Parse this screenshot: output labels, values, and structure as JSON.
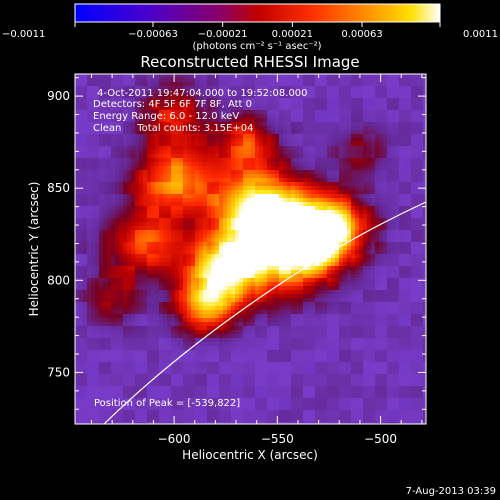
{
  "chart_data": {
    "type": "heatmap",
    "title": "Reconstructed RHESSI Image",
    "xlabel": "Heliocentric X (arcsec)",
    "ylabel": "Heliocentric Y (arcsec)",
    "xlim": [
      -648,
      -478
    ],
    "ylim": [
      722,
      912
    ],
    "x_ticks": [
      -600,
      -550,
      -500
    ],
    "y_ticks": [
      750,
      800,
      850,
      900
    ],
    "colorbar": {
      "vmin": -0.0011,
      "vmax": 0.0011,
      "tick_values": [
        -0.0011,
        -0.00063,
        -0.00021,
        0.00021,
        0.00063,
        0.0011
      ],
      "tick_labels": [
        "−0.0011",
        "−0.00063",
        "−0.00021",
        "0.00021",
        "0.00063",
        "0.0011"
      ],
      "unit_label": "(photons cm⁻² s⁻¹ asec⁻²)"
    },
    "annotations": [
      "4-Oct-2011 19:47:04.000 to 19:52:08.000",
      "Detectors: 4F 5F 6F 7F 8F, Att 0",
      "Energy Range: 6.0 - 12.0 keV",
      "Clean     Total counts: 3.15E+04"
    ],
    "peak_label": "Position of Peak = [-539,822]",
    "peak_position": [
      -539,
      822
    ],
    "limb_line": true,
    "date_stamp": "7-Aug-2013 03:39",
    "colors": {
      "frame": "#ffffff",
      "limb": "#ffffff",
      "background": "#000000"
    }
  }
}
